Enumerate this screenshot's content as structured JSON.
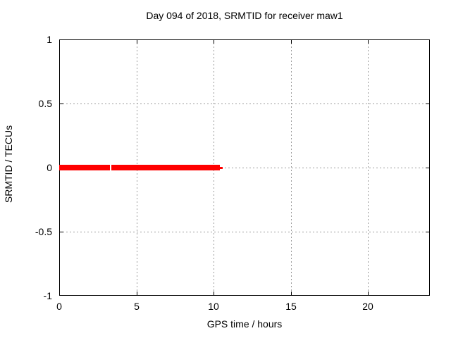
{
  "chart_data": {
    "type": "line",
    "title": "Day 094 of 2018, SRMTID for receiver maw1",
    "xlabel": "GPS time / hours",
    "ylabel": "SRMTID / TECUs",
    "xlim": [
      0,
      24
    ],
    "ylim": [
      -1,
      1
    ],
    "xticks": [
      {
        "value": 0,
        "label": "0"
      },
      {
        "value": 5,
        "label": "5"
      },
      {
        "value": 10,
        "label": "10"
      },
      {
        "value": 15,
        "label": "15"
      },
      {
        "value": 20,
        "label": "20"
      }
    ],
    "yticks": [
      {
        "value": -1,
        "label": "-1"
      },
      {
        "value": -0.5,
        "label": "-0.5"
      },
      {
        "value": 0,
        "label": "0"
      },
      {
        "value": 0.5,
        "label": "0.5"
      },
      {
        "value": 1,
        "label": "1"
      }
    ],
    "grid": true,
    "legend": "none",
    "background_color": "#ffffff",
    "border_color": "#000000",
    "grid_color": "#9b9b9b",
    "text_color": "#000000",
    "series": [
      {
        "name": "SRMTID",
        "color": "#ff0000",
        "style": "thick",
        "segments": [
          {
            "x_start": 0.0,
            "x_end": 3.27,
            "y": 0
          },
          {
            "x_start": 3.37,
            "x_end": 10.4,
            "y": 0
          },
          {
            "x_start": 10.4,
            "x_end": 10.6,
            "y": 0,
            "style": "thin"
          }
        ]
      }
    ]
  }
}
